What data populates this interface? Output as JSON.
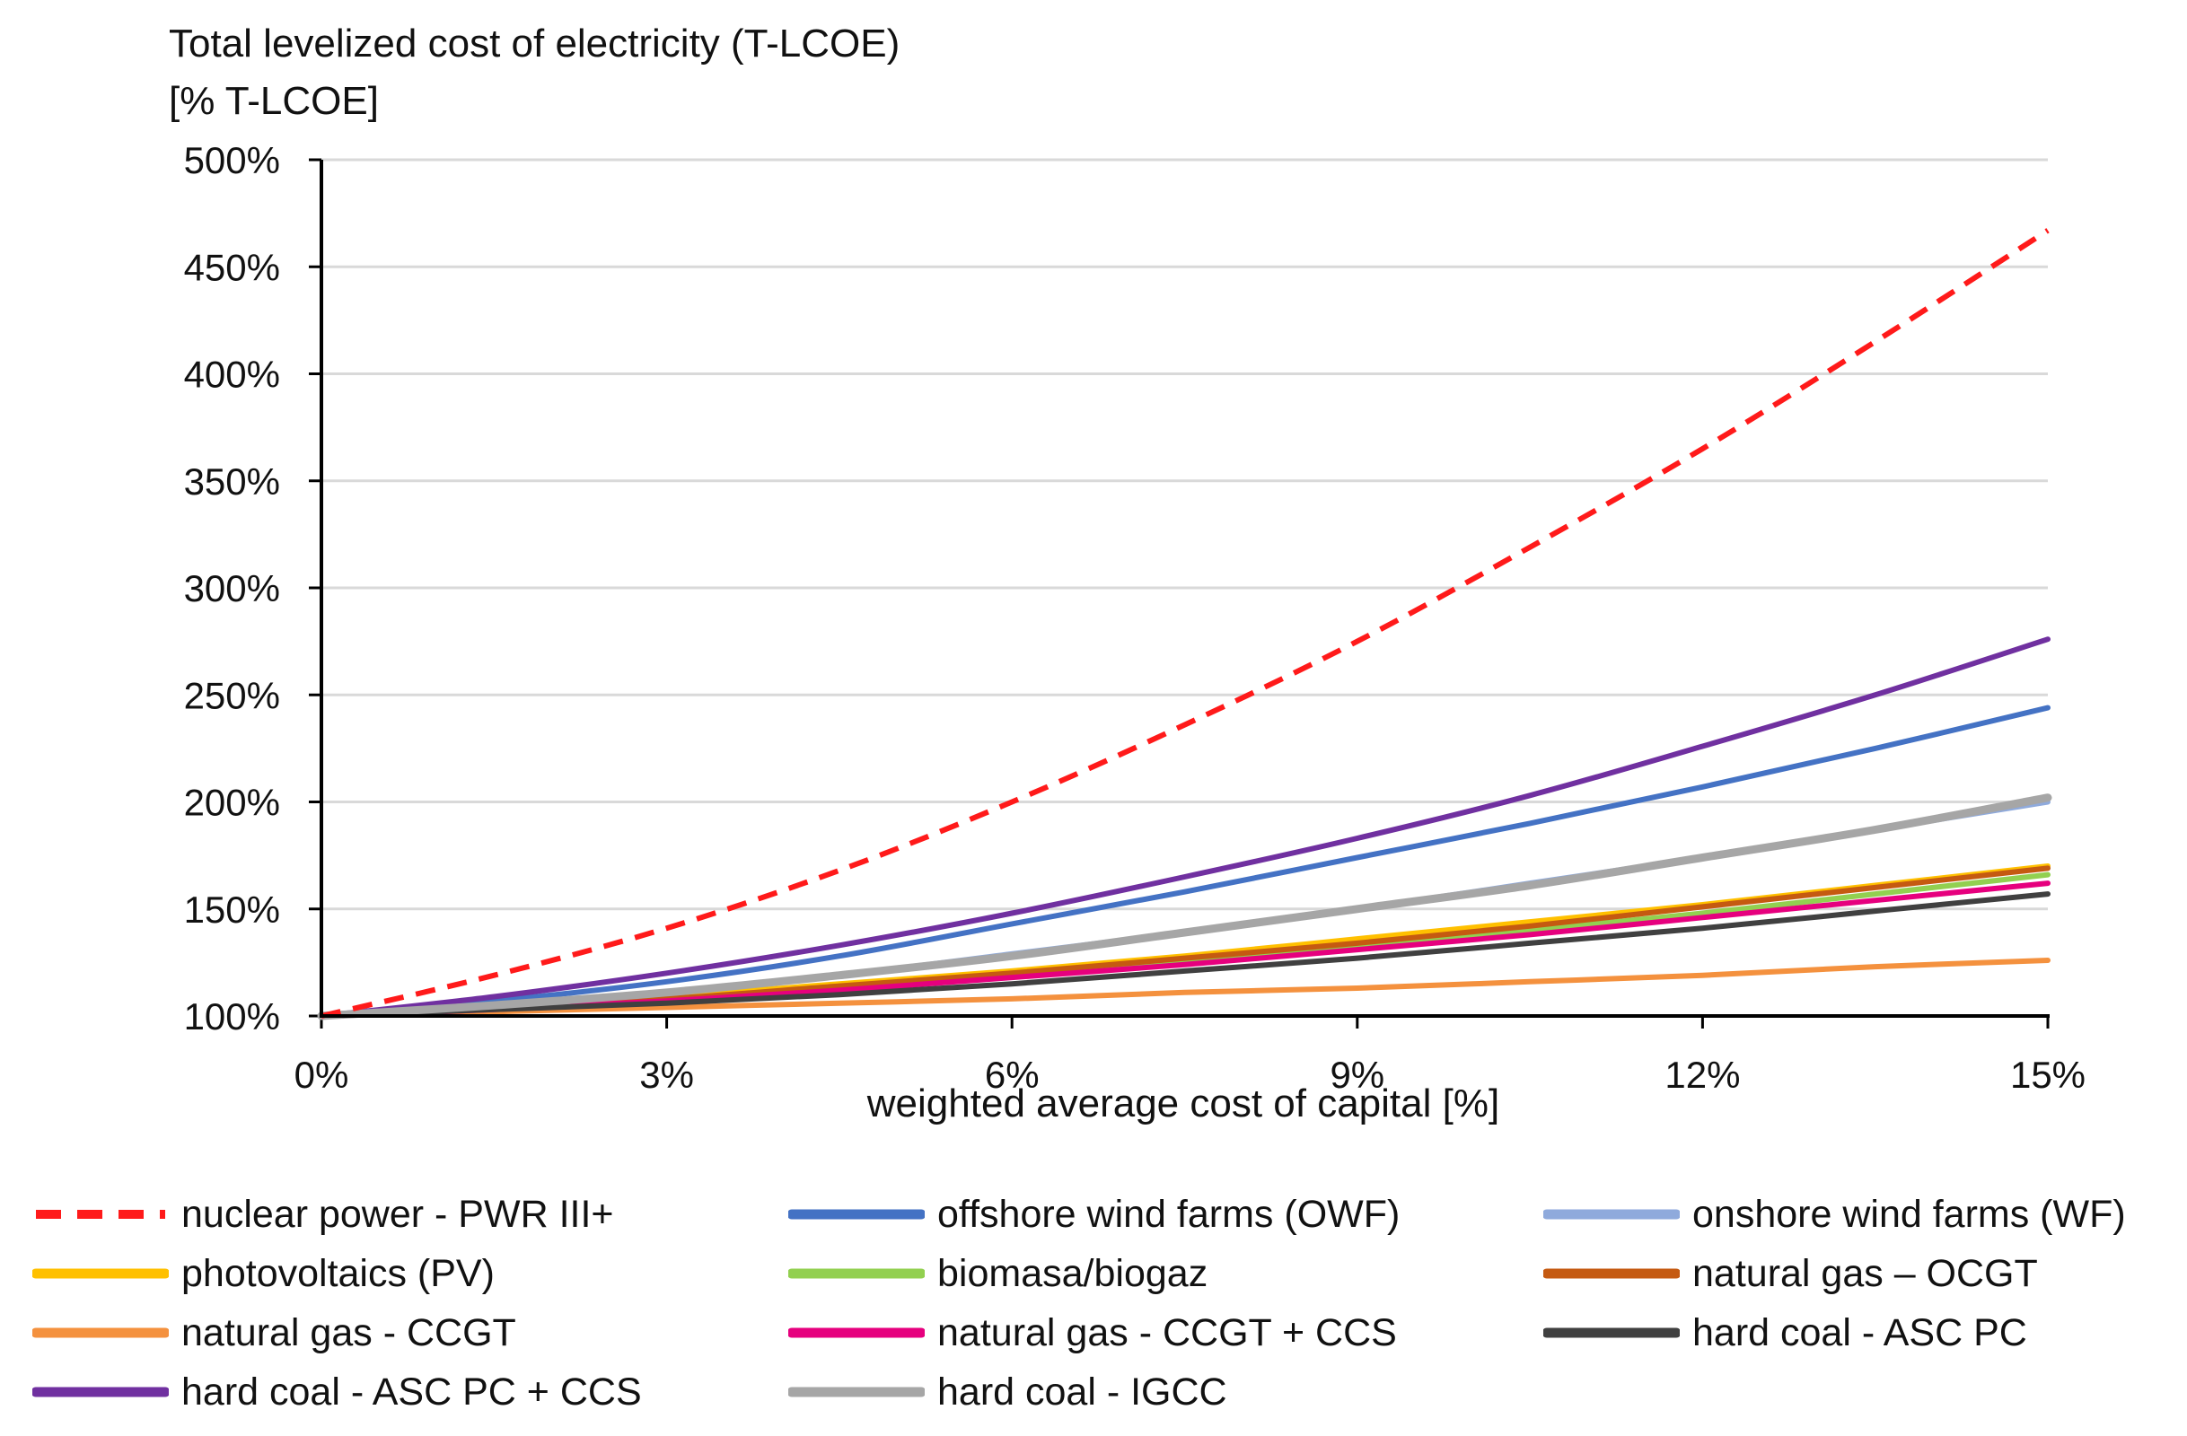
{
  "chart_data": {
    "type": "line",
    "title": "",
    "ylabel": [
      "Total levelized cost of electricity (T-LCOE)",
      "[% T-LCOE]"
    ],
    "xlabel": "weighted average cost of capital [%]",
    "x": [
      0,
      1.5,
      3,
      4.5,
      6,
      7.5,
      9,
      10.5,
      12,
      13.5,
      15
    ],
    "xticks": [
      0,
      3,
      6,
      9,
      12,
      15
    ],
    "xtick_labels": [
      "0%",
      "3%",
      "6%",
      "9%",
      "12%",
      "15%"
    ],
    "xlim": [
      0,
      15
    ],
    "ylim": [
      100,
      500
    ],
    "yticks": [
      100,
      150,
      200,
      250,
      300,
      350,
      400,
      450,
      500
    ],
    "ytick_labels": [
      "100%",
      "150%",
      "200%",
      "250%",
      "300%",
      "350%",
      "400%",
      "450%",
      "500%"
    ],
    "grid": true,
    "legend_position": "bottom",
    "series": [
      {
        "name": "nuclear power - PWR III+",
        "color": "#ff1a1a",
        "dashed": true,
        "values": [
          100,
          119,
          141,
          168,
          200,
          236,
          275,
          319,
          365,
          415,
          467
        ]
      },
      {
        "name": "offshore wind farms (OWF)",
        "color": "#4472c4",
        "dashed": false,
        "values": [
          100,
          107,
          116,
          128,
          143,
          158,
          174,
          190,
          207,
          225,
          244
        ]
      },
      {
        "name": "onshore wind farms (WF)",
        "color": "#8faadc",
        "dashed": false,
        "values": [
          100,
          105,
          111,
          119,
          129,
          139,
          150,
          162,
          174,
          187,
          200
        ]
      },
      {
        "name": "photovoltaics (PV)",
        "color": "#ffc000",
        "dashed": false,
        "values": [
          100,
          104,
          109,
          115,
          121,
          128,
          136,
          144,
          152,
          161,
          170
        ]
      },
      {
        "name": "biomasa/biogaz",
        "color": "#92d050",
        "dashed": false,
        "values": [
          100,
          104,
          108,
          113,
          119,
          126,
          133,
          140,
          148,
          157,
          166
        ]
      },
      {
        "name": "natural gas – OCGT",
        "color": "#c55a11",
        "dashed": false,
        "values": [
          100,
          104,
          108,
          114,
          120,
          127,
          134,
          142,
          151,
          160,
          169
        ]
      },
      {
        "name": "natural gas - CCGT",
        "color": "#f4913e",
        "dashed": false,
        "values": [
          100,
          102,
          104,
          106,
          108,
          111,
          113,
          116,
          119,
          123,
          126
        ]
      },
      {
        "name": "natural gas - CCGT + CCS",
        "color": "#e6007e",
        "dashed": false,
        "values": [
          100,
          103,
          107,
          112,
          118,
          124,
          131,
          138,
          146,
          154,
          162
        ]
      },
      {
        "name": "hard coal - ASC PC",
        "color": "#404040",
        "dashed": false,
        "values": [
          100,
          103,
          106,
          110,
          115,
          121,
          127,
          134,
          141,
          149,
          157
        ]
      },
      {
        "name": "hard coal - ASC PC + CCS",
        "color": "#7030a0",
        "dashed": false,
        "values": [
          100,
          109,
          120,
          133,
          148,
          165,
          183,
          203,
          226,
          250,
          276
        ]
      },
      {
        "name": "hard coal - IGCC",
        "color": "#a6a6a6",
        "dashed": false,
        "values": [
          100,
          105,
          111,
          119,
          128,
          139,
          150,
          161,
          174,
          187,
          202
        ]
      }
    ]
  }
}
